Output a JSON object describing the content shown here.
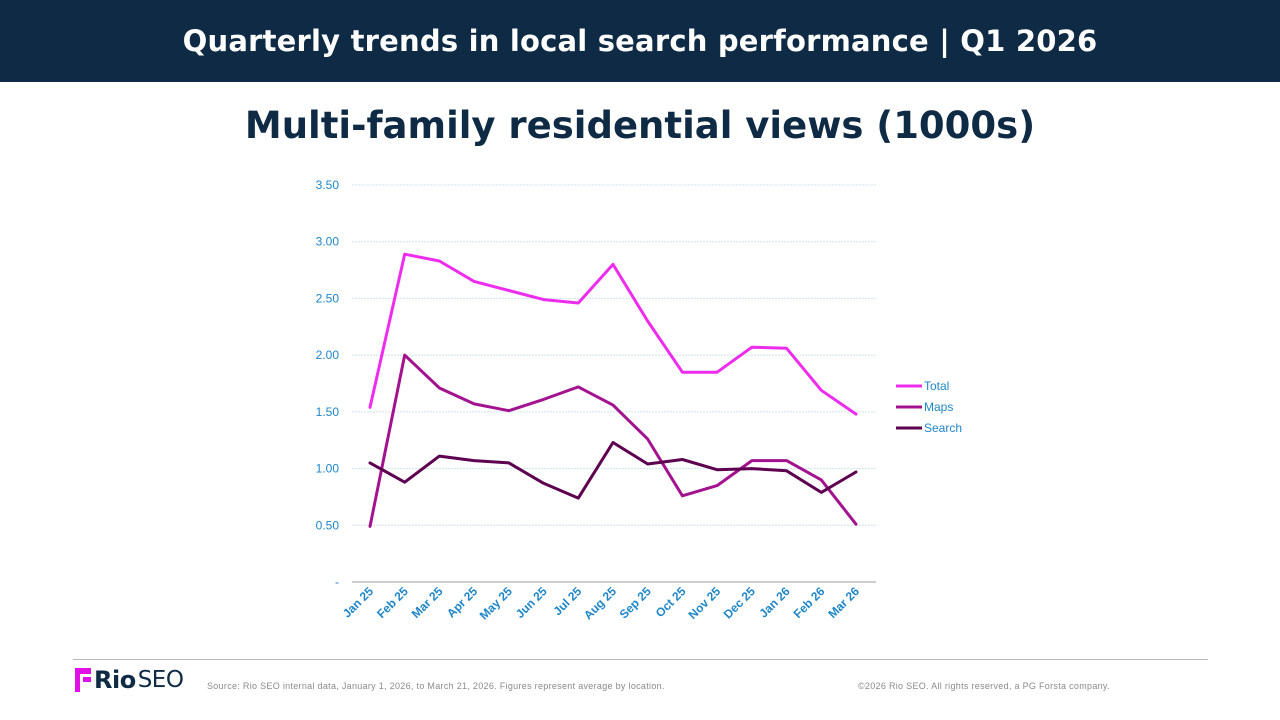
{
  "header": {
    "title": "Quarterly trends in local search performance | Q1 2026",
    "background": "#0e2a44"
  },
  "colors": {
    "title_text": "#0e2a44",
    "axis_text": "#1e86c8",
    "gridline": "#cde4ee",
    "axis_line": "#9a9a9a"
  },
  "footer": {
    "logo_rio": "Rio",
    "logo_seo": "SEO",
    "logo_icon": "rio-seo-logo-mark",
    "source": "Source: Rio SEO internal data, January 1, 2026, to March 21, 2026. Figures represent average by location.",
    "copyright": "©2026 Rio SEO. All rights reserved, a PG Forsta company."
  },
  "chart_data": {
    "type": "line",
    "title": "Multi-family residential views (1000s)",
    "xlabel": "",
    "ylabel": "",
    "ylim": [
      0,
      3.5
    ],
    "yticks": [
      0,
      0.5,
      1.0,
      1.5,
      2.0,
      2.5,
      3.0,
      3.5
    ],
    "ytick_labels": [
      "-",
      "0.50",
      "1.00",
      "1.50",
      "2.00",
      "2.50",
      "3.00",
      "3.50"
    ],
    "grid": true,
    "legend_position": "right",
    "categories": [
      "Jan 25",
      "Feb 25",
      "Mar 25",
      "Apr 25",
      "May 25",
      "Jun 25",
      "Jul 25",
      "Aug 25",
      "Sep 25",
      "Oct 25",
      "Nov 25",
      "Dec 25",
      "Jan 26",
      "Feb 26",
      "Mar 26"
    ],
    "series": [
      {
        "name": "Total",
        "color": "#ee2cee",
        "values": [
          1.54,
          2.89,
          2.83,
          2.65,
          2.57,
          2.49,
          2.46,
          2.8,
          2.3,
          1.85,
          1.85,
          2.07,
          2.06,
          1.69,
          1.48
        ]
      },
      {
        "name": "Maps",
        "color": "#a3128f",
        "values": [
          0.49,
          2.0,
          1.71,
          1.57,
          1.51,
          1.61,
          1.72,
          1.56,
          1.26,
          0.76,
          0.85,
          1.07,
          1.07,
          0.9,
          0.51
        ]
      },
      {
        "name": "Search",
        "color": "#5e0050",
        "values": [
          1.05,
          0.88,
          1.11,
          1.07,
          1.05,
          0.87,
          0.74,
          1.23,
          1.04,
          1.08,
          0.99,
          1.0,
          0.98,
          0.79,
          0.97
        ]
      }
    ]
  }
}
